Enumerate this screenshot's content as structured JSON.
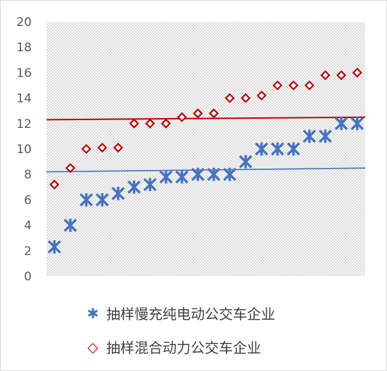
{
  "chart_data": {
    "type": "scatter",
    "title": "",
    "xlabel": "",
    "ylabel": "",
    "ylim": [
      0,
      20
    ],
    "yticks": [
      0,
      2,
      4,
      6,
      8,
      10,
      12,
      14,
      16,
      18,
      20
    ],
    "x": [
      1,
      2,
      3,
      4,
      5,
      6,
      7,
      8,
      9,
      10,
      11,
      12,
      13,
      14,
      15,
      16,
      17,
      18,
      19,
      20
    ],
    "grid": "none",
    "background_pattern": "hatched",
    "legend_position": "bottom",
    "series": [
      {
        "name": "抽样慢充纯电动公交车企业",
        "marker": "asterisk",
        "color": "#4472c4",
        "values": [
          2.3,
          4.0,
          6.0,
          6.0,
          6.5,
          7.0,
          7.2,
          7.8,
          7.8,
          8.0,
          8.0,
          8.0,
          9.0,
          10.0,
          10.0,
          10.0,
          11.0,
          11.0,
          12.0,
          12.0
        ],
        "trendline": {
          "start": 8.2,
          "end": 8.5,
          "color": "#4472c4"
        }
      },
      {
        "name": "抽样混合动力公交车企业",
        "marker": "diamond",
        "color": "#c00000",
        "values": [
          7.2,
          8.5,
          10.0,
          10.1,
          10.1,
          12.0,
          12.0,
          12.0,
          12.5,
          12.8,
          12.8,
          14.0,
          14.0,
          14.2,
          15.0,
          15.0,
          15.0,
          15.8,
          15.8,
          16.0
        ],
        "trendline": {
          "start": 12.3,
          "end": 12.5,
          "color": "#c00000"
        }
      }
    ]
  }
}
